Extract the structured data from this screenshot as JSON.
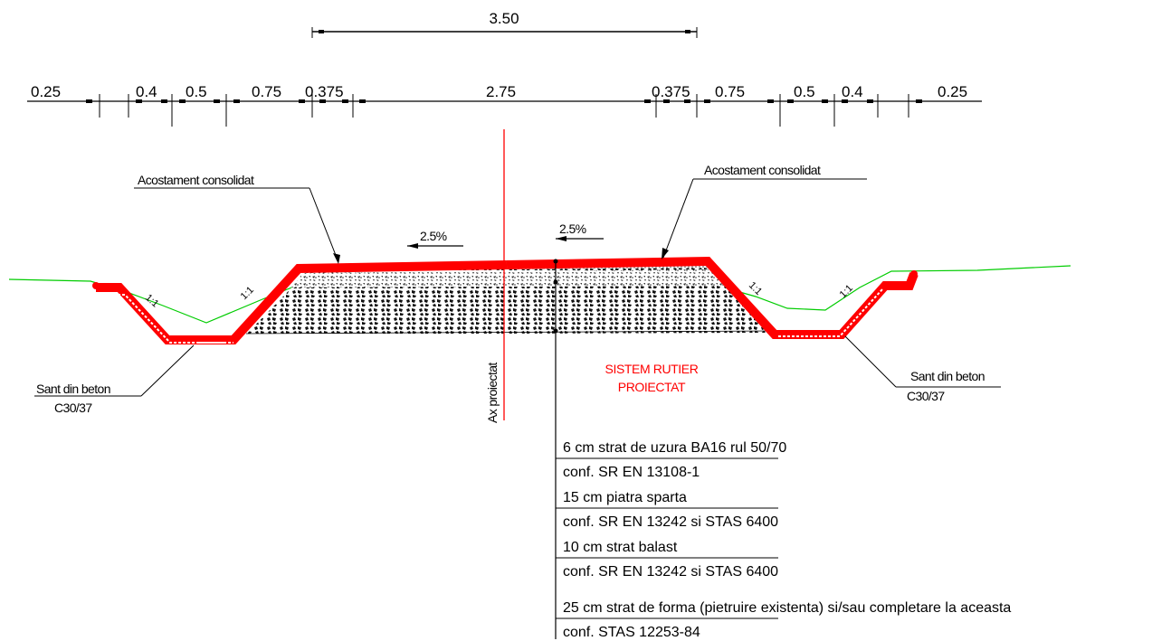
{
  "overall_width": "3.50",
  "segments": [
    "0.25",
    "0.4",
    "0.5",
    "0.75",
    "0.375",
    "2.75",
    "0.375",
    "0.75",
    "0.5",
    "0.4",
    "0.25"
  ],
  "shoulder_left": "Acostament consolidat",
  "shoulder_right": "Acostament consolidat",
  "crossfall_left": "2.5%",
  "crossfall_right": "2.5%",
  "ditch_left": {
    "line1": "Sant din beton",
    "line2": "C30/37"
  },
  "ditch_right": {
    "line1": "Sant din beton",
    "line2": "C30/37"
  },
  "slope_ratio": "1:1",
  "axis_label": "Ax proiectat",
  "system_title": {
    "line1": "SISTEM RUTIER",
    "line2": "PROIECTAT"
  },
  "layers": [
    {
      "name": "6 cm strat de uzura BA16 rul 50/70",
      "spec": "conf. SR EN 13108-1"
    },
    {
      "name": "15 cm piatra sparta",
      "spec": "conf. SR EN 13242 si STAS 6400"
    },
    {
      "name": "10 cm strat balast",
      "spec": "conf. SR EN 13242 si STAS 6400"
    },
    {
      "name": "25 cm strat de forma (pietruire existenta) si/sau completare la aceasta",
      "spec": "conf. STAS 12253-84"
    }
  ],
  "colors": {
    "concrete": "#ff0000",
    "terrain": "#00cc00",
    "axis": "#ff0000",
    "lines": "#000000"
  }
}
